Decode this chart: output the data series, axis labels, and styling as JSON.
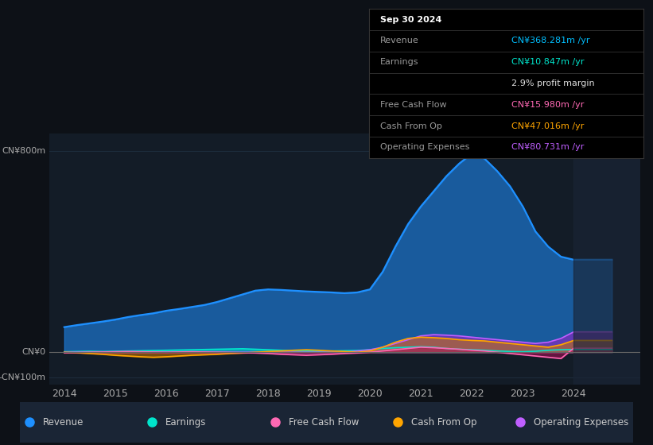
{
  "background_color": "#0d1117",
  "plot_bg_color": "#131c27",
  "ylim": [
    -130,
    870
  ],
  "x_ticks": [
    "2014",
    "2015",
    "2016",
    "2017",
    "2018",
    "2019",
    "2020",
    "2021",
    "2022",
    "2023",
    "2024"
  ],
  "info_rows": [
    {
      "label": "Sep 30 2024",
      "value": "",
      "label_color": "#ffffff",
      "value_color": "#ffffff",
      "bold": true
    },
    {
      "label": "Revenue",
      "value": "CN¥368.281m /yr",
      "label_color": "#999999",
      "value_color": "#00bfff",
      "bold": false
    },
    {
      "label": "Earnings",
      "value": "CN¥10.847m /yr",
      "label_color": "#999999",
      "value_color": "#00e5cc",
      "bold": false
    },
    {
      "label": "",
      "value": "2.9% profit margin",
      "label_color": "#ffffff",
      "value_color": "#dddddd",
      "bold": false
    },
    {
      "label": "Free Cash Flow",
      "value": "CN¥15.980m /yr",
      "label_color": "#999999",
      "value_color": "#ff69b4",
      "bold": false
    },
    {
      "label": "Cash From Op",
      "value": "CN¥47.016m /yr",
      "label_color": "#999999",
      "value_color": "#ffa500",
      "bold": false
    },
    {
      "label": "Operating Expenses",
      "value": "CN¥80.731m /yr",
      "label_color": "#999999",
      "value_color": "#bf5fff",
      "bold": false
    }
  ],
  "legend": [
    {
      "label": "Revenue",
      "color": "#1e90ff"
    },
    {
      "label": "Earnings",
      "color": "#00e5cc"
    },
    {
      "label": "Free Cash Flow",
      "color": "#ff69b4"
    },
    {
      "label": "Cash From Op",
      "color": "#ffa500"
    },
    {
      "label": "Operating Expenses",
      "color": "#bf5fff"
    }
  ],
  "years": [
    2014,
    2014.25,
    2014.5,
    2014.75,
    2015,
    2015.25,
    2015.5,
    2015.75,
    2016,
    2016.25,
    2016.5,
    2016.75,
    2017,
    2017.25,
    2017.5,
    2017.75,
    2018,
    2018.25,
    2018.5,
    2018.75,
    2019,
    2019.25,
    2019.5,
    2019.75,
    2020,
    2020.25,
    2020.5,
    2020.75,
    2021,
    2021.25,
    2021.5,
    2021.75,
    2022,
    2022.25,
    2022.5,
    2022.75,
    2023,
    2023.25,
    2023.5,
    2023.75,
    2024,
    2024.25,
    2024.5,
    2024.75
  ],
  "revenue": [
    100,
    108,
    115,
    122,
    130,
    140,
    148,
    155,
    165,
    172,
    180,
    188,
    200,
    215,
    230,
    245,
    250,
    248,
    245,
    242,
    240,
    238,
    235,
    238,
    250,
    320,
    420,
    510,
    580,
    640,
    700,
    750,
    790,
    770,
    720,
    660,
    580,
    480,
    420,
    380,
    368,
    368,
    368,
    368
  ],
  "earnings": [
    2,
    3,
    4,
    3,
    4,
    5,
    6,
    7,
    8,
    9,
    10,
    11,
    12,
    13,
    14,
    12,
    10,
    8,
    6,
    5,
    4,
    5,
    6,
    7,
    10,
    15,
    18,
    20,
    22,
    20,
    15,
    12,
    10,
    8,
    5,
    3,
    2,
    4,
    8,
    10,
    11,
    11,
    11,
    11
  ],
  "fcf": [
    -2,
    -1,
    0,
    1,
    2,
    3,
    2,
    1,
    0,
    1,
    2,
    1,
    0,
    -1,
    -2,
    -3,
    -5,
    -8,
    -10,
    -12,
    -10,
    -8,
    -5,
    -3,
    0,
    5,
    10,
    15,
    20,
    18,
    15,
    12,
    8,
    5,
    0,
    -5,
    -10,
    -15,
    -20,
    -25,
    16,
    16,
    16,
    16
  ],
  "cashfromop": [
    0,
    -2,
    -5,
    -8,
    -12,
    -15,
    -18,
    -20,
    -18,
    -15,
    -12,
    -10,
    -8,
    -5,
    -3,
    0,
    3,
    5,
    8,
    10,
    8,
    5,
    3,
    0,
    5,
    20,
    40,
    55,
    60,
    58,
    55,
    50,
    47,
    45,
    40,
    35,
    30,
    25,
    20,
    30,
    47,
    47,
    47,
    47
  ],
  "opex": [
    0,
    0,
    0,
    0,
    0,
    0,
    0,
    0,
    0,
    0,
    0,
    0,
    0,
    0,
    0,
    0,
    0,
    0,
    0,
    0,
    0,
    0,
    0,
    5,
    10,
    20,
    35,
    50,
    65,
    70,
    68,
    65,
    60,
    55,
    50,
    45,
    40,
    35,
    40,
    55,
    81,
    81,
    81,
    81
  ]
}
